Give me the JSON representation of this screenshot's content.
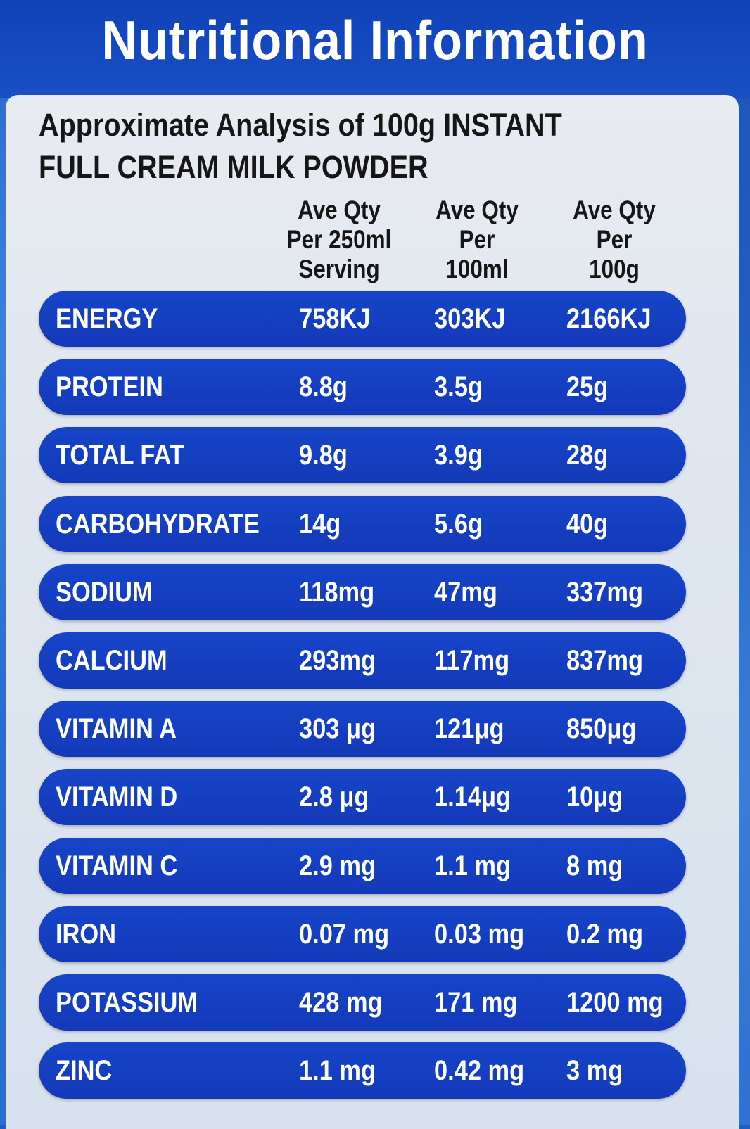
{
  "title": "Nutritional Information",
  "subtitle": "Approximate Analysis of 100g INSTANT FULL CREAM MILK POWDER",
  "columns": [
    [
      "Ave Qty",
      "Per 250ml",
      "Serving"
    ],
    [
      "Ave Qty",
      "Per",
      "100ml"
    ],
    [
      "Ave Qty",
      "Per",
      "100g"
    ]
  ],
  "rows": [
    {
      "nutrient": "ENERGY",
      "per_serving": "758KJ",
      "per_100ml": "303KJ",
      "per_100g": "2166KJ"
    },
    {
      "nutrient": "PROTEIN",
      "per_serving": "8.8g",
      "per_100ml": "3.5g",
      "per_100g": "25g"
    },
    {
      "nutrient": "TOTAL FAT",
      "per_serving": "9.8g",
      "per_100ml": "3.9g",
      "per_100g": "28g"
    },
    {
      "nutrient": "CARBOHYDRATE",
      "per_serving": "14g",
      "per_100ml": "5.6g",
      "per_100g": "40g"
    },
    {
      "nutrient": "SODIUM",
      "per_serving": "118mg",
      "per_100ml": "47mg",
      "per_100g": "337mg"
    },
    {
      "nutrient": "CALCIUM",
      "per_serving": "293mg",
      "per_100ml": "117mg",
      "per_100g": "837mg"
    },
    {
      "nutrient": "VITAMIN A",
      "per_serving": "303 μg",
      "per_100ml": "121μg",
      "per_100g": "850μg"
    },
    {
      "nutrient": "VITAMIN D",
      "per_serving": "2.8 μg",
      "per_100ml": "1.14μg",
      "per_100g": "10μg"
    },
    {
      "nutrient": "VITAMIN C",
      "per_serving": "2.9 mg",
      "per_100ml": "1.1 mg",
      "per_100g": "8 mg"
    },
    {
      "nutrient": "IRON",
      "per_serving": "0.07 mg",
      "per_100ml": "0.03 mg",
      "per_100g": "0.2 mg"
    },
    {
      "nutrient": "POTASSIUM",
      "per_serving": "428 mg",
      "per_100ml": "171 mg",
      "per_100g": "1200 mg"
    },
    {
      "nutrient": "ZINC",
      "per_serving": "1.1 mg",
      "per_100ml": "0.42 mg",
      "per_100g": "3 mg"
    }
  ],
  "colors": {
    "title_band": "#1042b8",
    "row_band": "#1645c8",
    "panel": "#e3e8ef",
    "text_dark": "#161616",
    "text_light": "#ffffff"
  }
}
